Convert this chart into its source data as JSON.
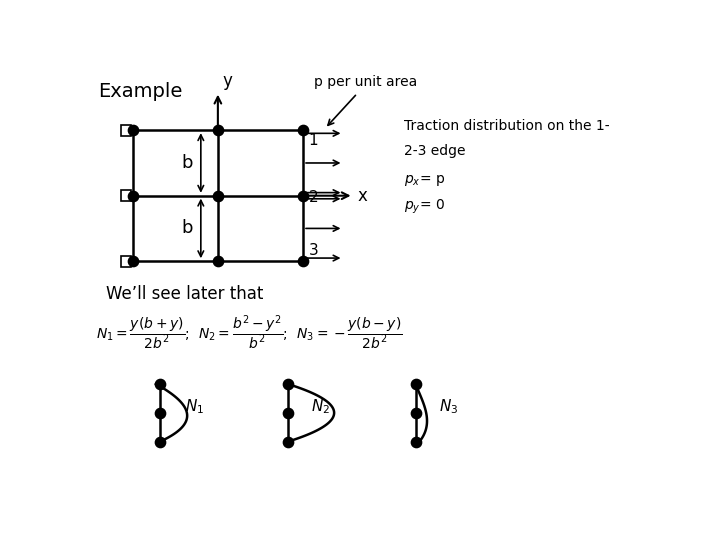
{
  "bg_color": "#ffffff",
  "title_text": "Example",
  "label_p_per_unit": "p per unit area",
  "label_well_see": "We’ll see later that"
}
